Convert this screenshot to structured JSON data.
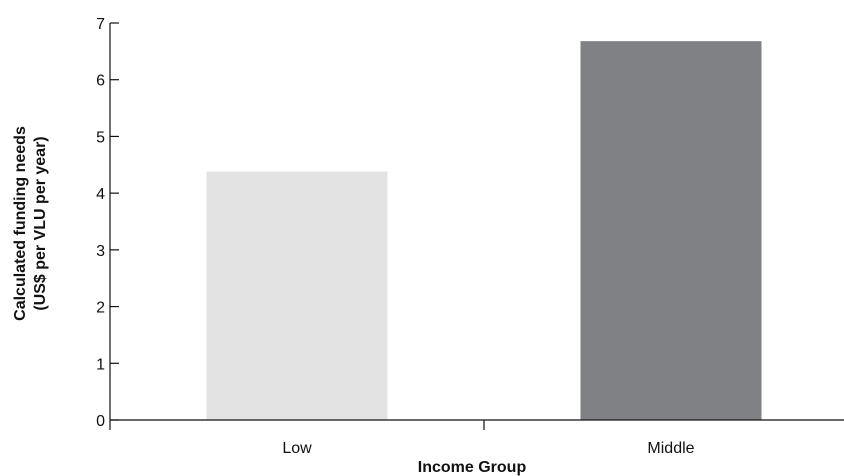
{
  "chart_data": {
    "type": "bar",
    "title": "",
    "xlabel": "Income Group",
    "ylabel_lines": [
      "Calculated funding needs",
      "(US$ per VLU per year)"
    ],
    "categories": [
      "Low",
      "Middle"
    ],
    "values": [
      4.38,
      6.68
    ],
    "bar_colors": [
      "#e3e3e3",
      "#808184"
    ],
    "ylim": [
      0,
      7
    ],
    "yticks": [
      0,
      1,
      2,
      3,
      4,
      5,
      6,
      7
    ],
    "grid": false,
    "legend": "none"
  }
}
